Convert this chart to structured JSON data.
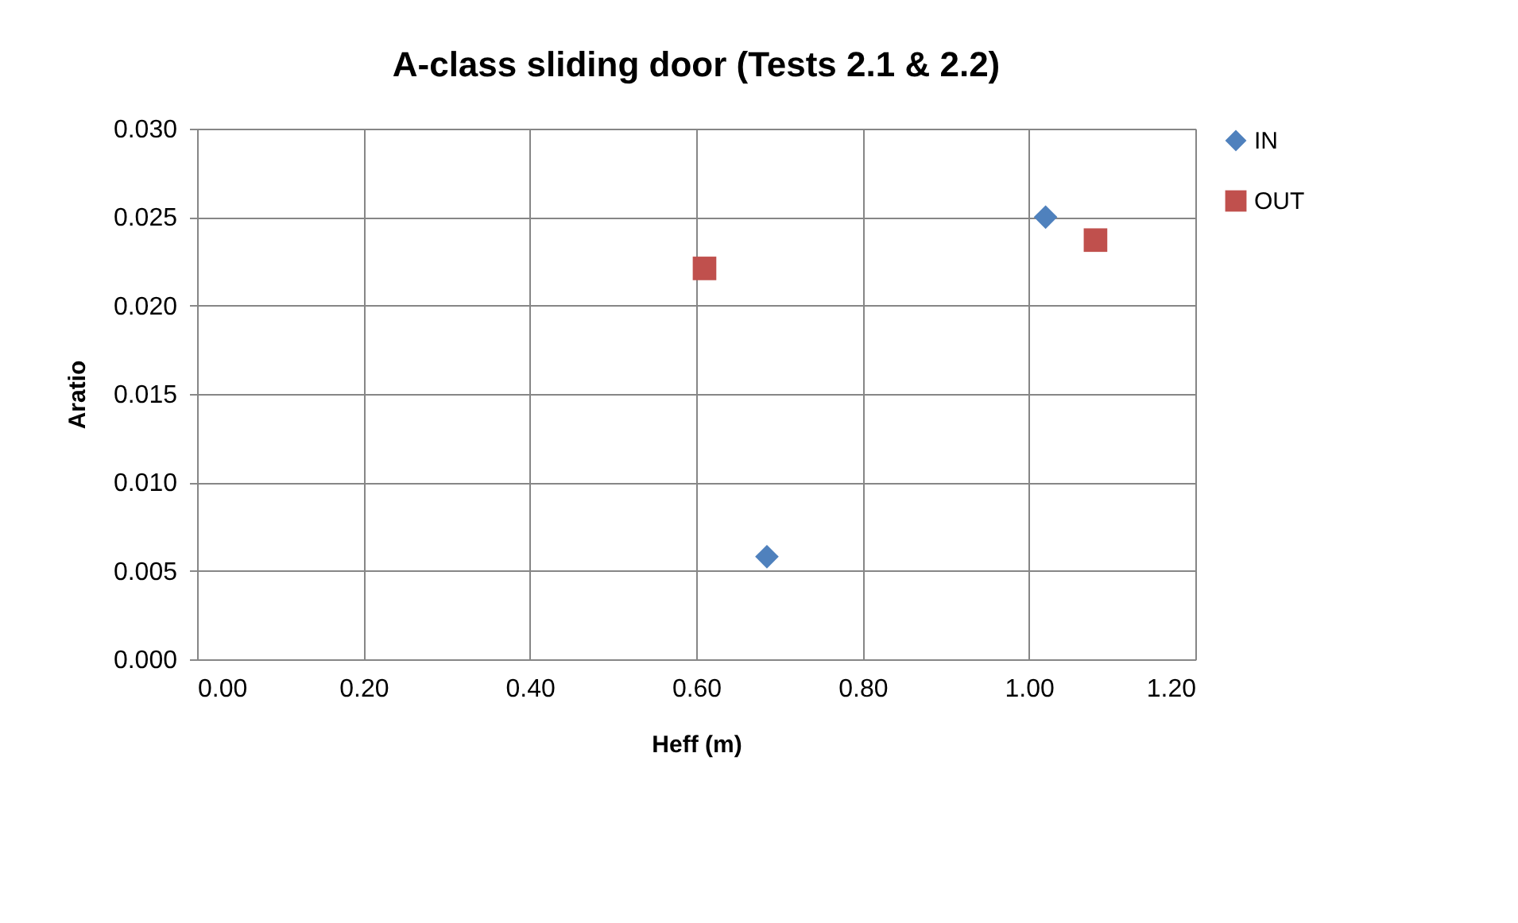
{
  "chart_data": {
    "type": "scatter",
    "title": "A-class sliding door (Tests 2.1 & 2.2)",
    "xlabel": "Heff (m)",
    "ylabel": "Aratio",
    "series": [
      {
        "name": "IN",
        "color": "#4f81bd",
        "marker": "diamond",
        "x": [
          0.685,
          1.02
        ],
        "values": [
          0.0058,
          0.025
        ]
      },
      {
        "name": "OUT",
        "color": "#c0504d",
        "marker": "square",
        "x": [
          0.61,
          1.08
        ],
        "values": [
          0.0221,
          0.0237
        ]
      }
    ],
    "xlim": [
      0,
      1.2
    ],
    "xticks": [
      {
        "value": 0,
        "label": "0.00"
      },
      {
        "value": 0.2,
        "label": "0.20"
      },
      {
        "value": 0.4,
        "label": "0.40"
      },
      {
        "value": 0.6,
        "label": "0.60"
      },
      {
        "value": 0.8,
        "label": "0.80"
      },
      {
        "value": 1.0,
        "label": "1.00"
      },
      {
        "value": 1.2,
        "label": "1.20"
      }
    ],
    "ylim": [
      0,
      0.03
    ],
    "yticks": [
      {
        "value": 0,
        "label": "0.000"
      },
      {
        "value": 0.005,
        "label": "0.005"
      },
      {
        "value": 0.01,
        "label": "0.010"
      },
      {
        "value": 0.015,
        "label": "0.015"
      },
      {
        "value": 0.02,
        "label": "0.020"
      },
      {
        "value": 0.025,
        "label": "0.025"
      },
      {
        "value": 0.03,
        "label": "0.030"
      }
    ],
    "grid": true,
    "legend": "right"
  }
}
